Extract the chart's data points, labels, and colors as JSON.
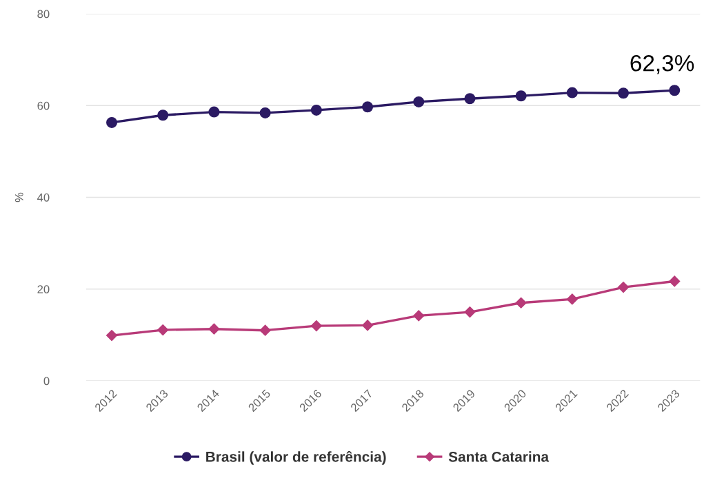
{
  "chart_data": {
    "type": "line",
    "ylabel": "%",
    "categories": [
      "2012",
      "2013",
      "2014",
      "2015",
      "2016",
      "2017",
      "2018",
      "2019",
      "2020",
      "2021",
      "2022",
      "2023"
    ],
    "series": [
      {
        "name": "Brasil (valor de referência)",
        "color": "#2b1a63",
        "marker": "circle",
        "values": [
          56.3,
          57.9,
          58.6,
          58.4,
          59.0,
          59.7,
          60.8,
          61.5,
          62.1,
          62.8,
          62.7,
          63.3
        ]
      },
      {
        "name": "Santa Catarina",
        "color": "#b83a78",
        "marker": "diamond",
        "values": [
          9.9,
          11.1,
          11.3,
          11.0,
          12.0,
          12.1,
          14.2,
          15.0,
          17.0,
          17.8,
          20.4,
          21.7
        ]
      }
    ],
    "ylim": [
      0,
      80
    ],
    "yticks": [
      0,
      20,
      40,
      60,
      80
    ],
    "grid": "y",
    "legend": "bottom",
    "line_style": "solid",
    "annotations": [
      "62,3%"
    ]
  }
}
